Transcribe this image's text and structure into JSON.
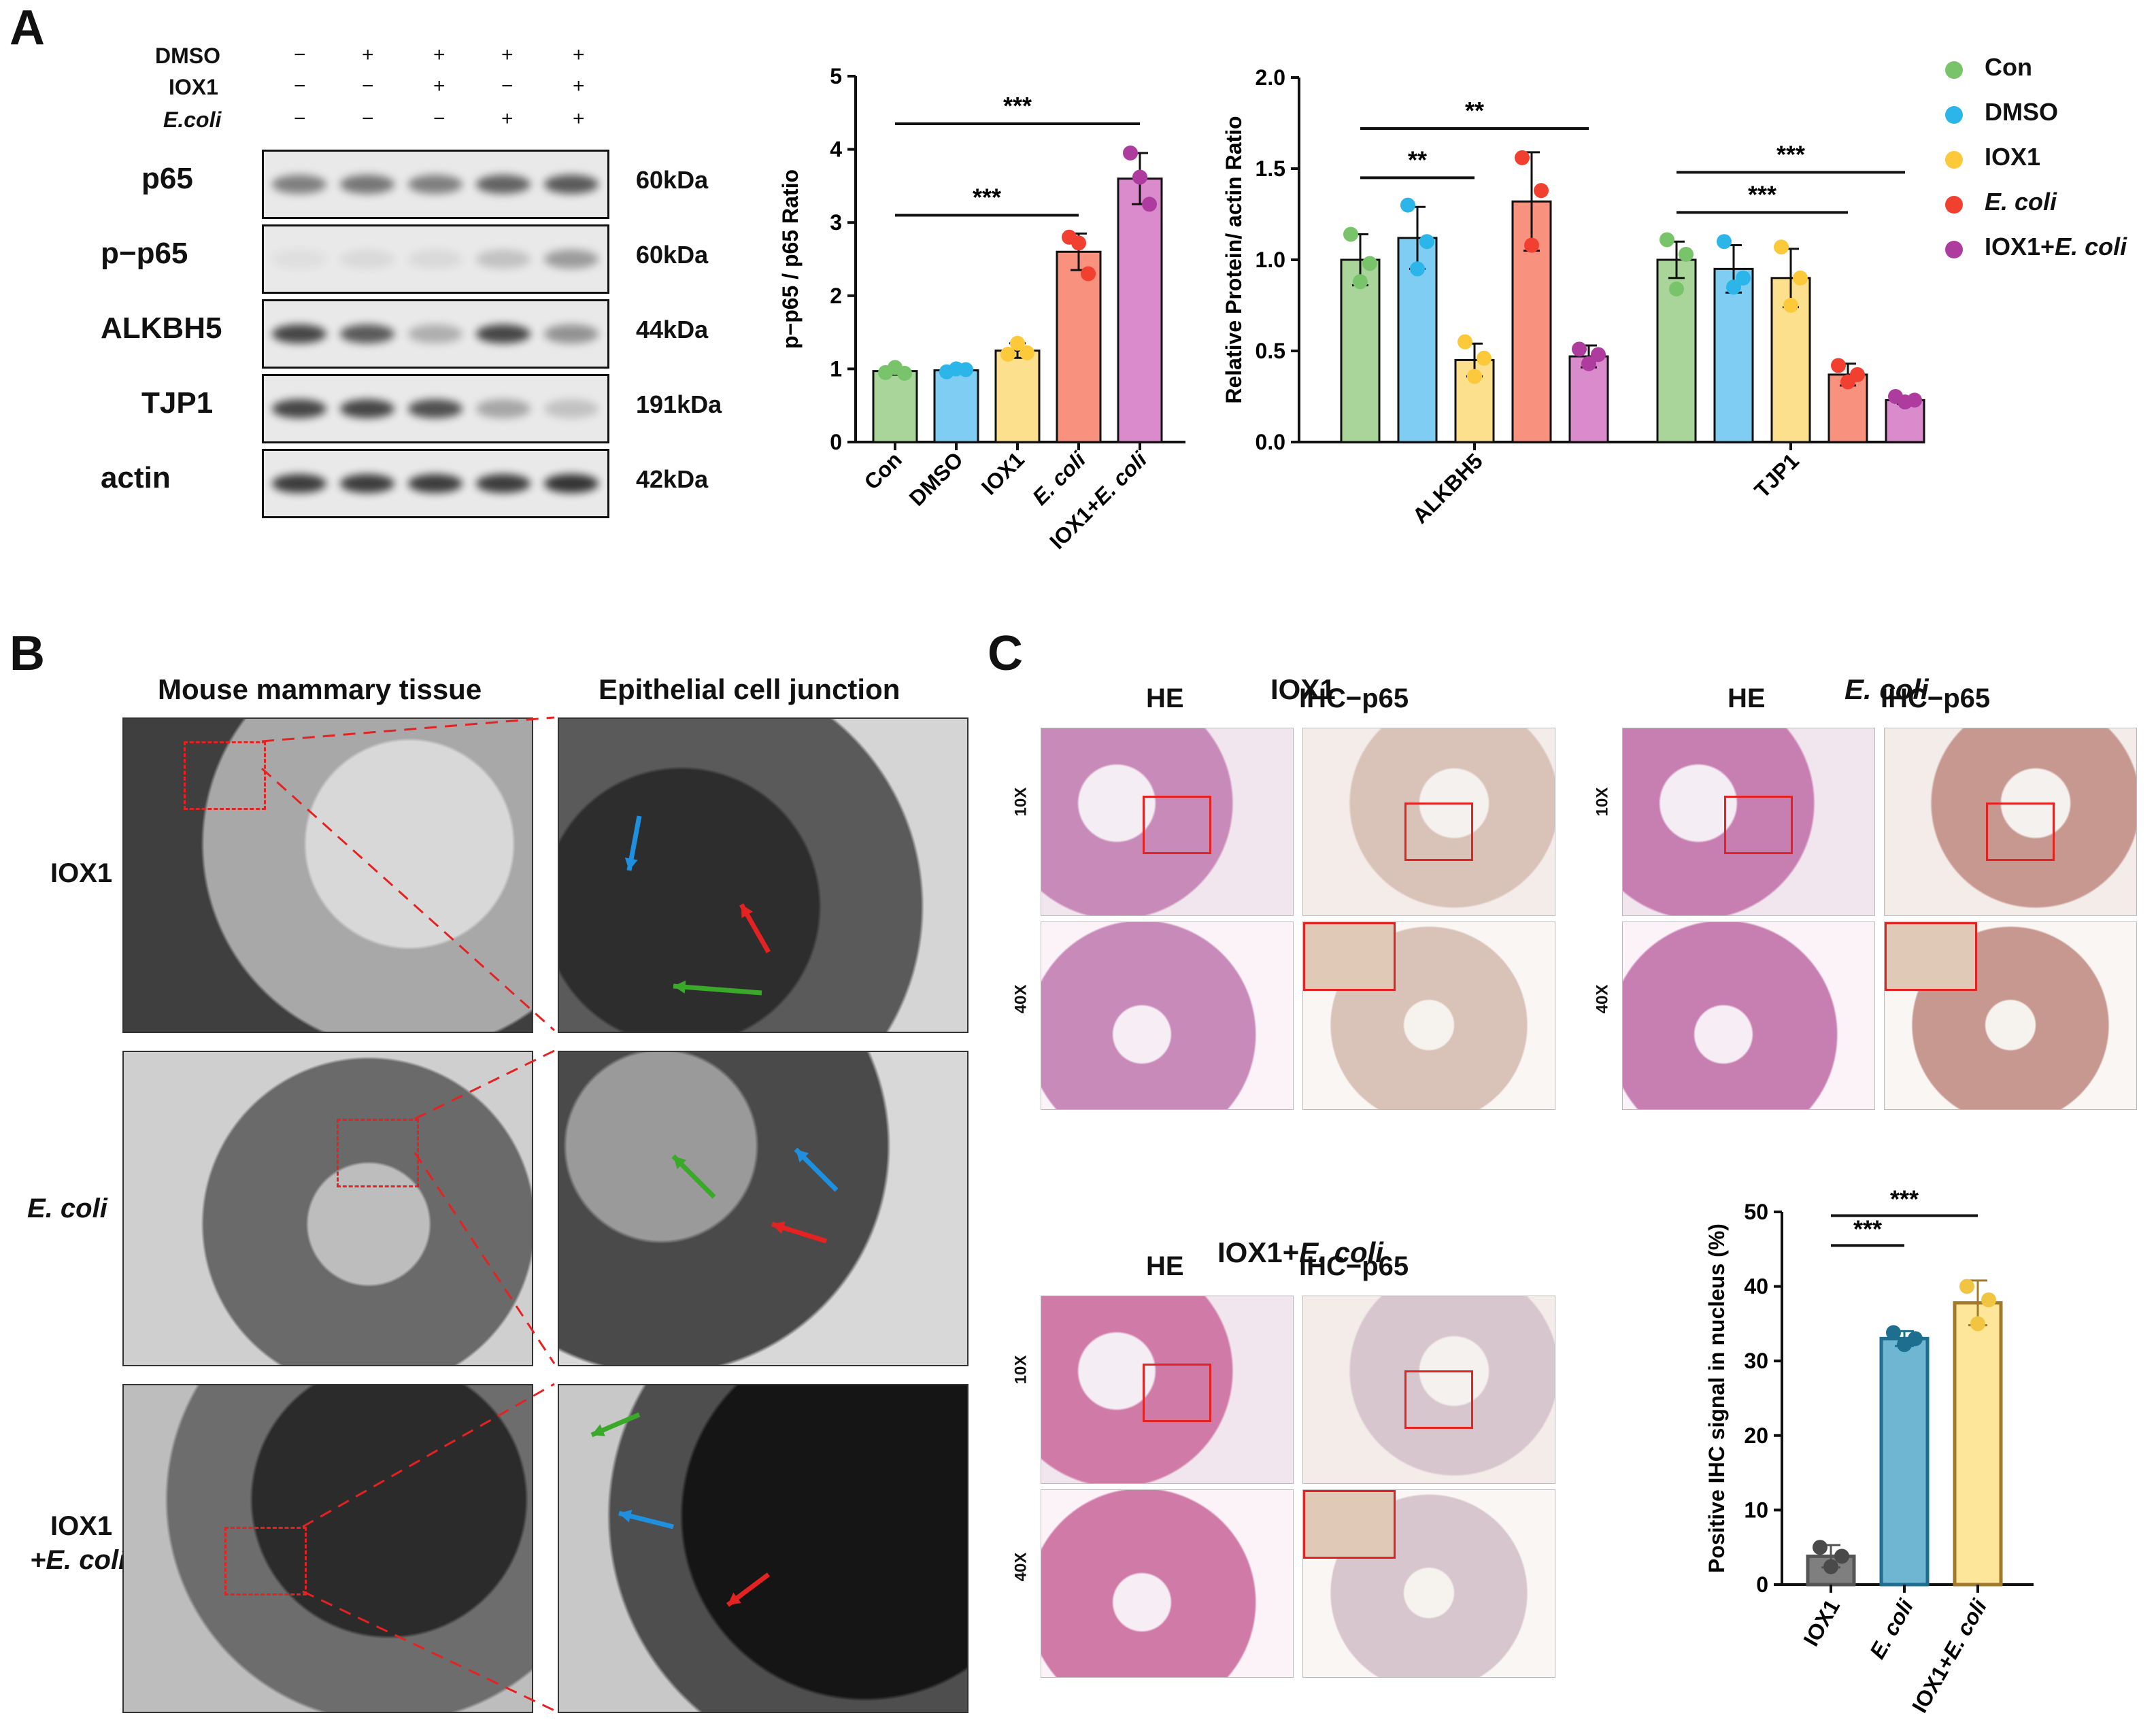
{
  "panels": {
    "A": "A",
    "B": "B",
    "C": "C"
  },
  "western": {
    "treatments": [
      {
        "name": "DMSO",
        "italic": false,
        "signs": [
          "−",
          "+",
          "+",
          "+",
          "+"
        ]
      },
      {
        "name": "IOX1",
        "italic": false,
        "signs": [
          "−",
          "−",
          "+",
          "−",
          "+"
        ]
      },
      {
        "name": "E.coli",
        "italic": true,
        "signs": [
          "−",
          "−",
          "−",
          "+",
          "+"
        ]
      }
    ],
    "rows": [
      {
        "protein": "p65",
        "size": "60kDa",
        "intensity": [
          0.55,
          0.6,
          0.55,
          0.7,
          0.75
        ]
      },
      {
        "protein": "p−p65",
        "size": "60kDa",
        "intensity": [
          0.05,
          0.08,
          0.08,
          0.2,
          0.4
        ]
      },
      {
        "protein": "ALKBH5",
        "size": "44kDa",
        "intensity": [
          0.85,
          0.75,
          0.3,
          0.85,
          0.45
        ]
      },
      {
        "protein": "TJP1",
        "size": "191kDa",
        "intensity": [
          0.85,
          0.85,
          0.8,
          0.35,
          0.2
        ]
      },
      {
        "protein": "actin",
        "size": "42kDa",
        "intensity": [
          0.9,
          0.9,
          0.9,
          0.9,
          0.95
        ]
      }
    ]
  },
  "legend": [
    {
      "label": "Con",
      "italic_part": "",
      "color": "#79c36a"
    },
    {
      "label": "DMSO",
      "italic_part": "",
      "color": "#2bb5e8"
    },
    {
      "label": "IOX1",
      "italic_part": "",
      "color": "#fbc93a"
    },
    {
      "label": "",
      "italic_part": "E. coli",
      "color": "#f1402f"
    },
    {
      "label": "IOX1+",
      "italic_part": "E. coli",
      "color": "#ad3c9e"
    }
  ],
  "chart_data": [
    {
      "type": "bar",
      "ylabel": "p−p65 / p65 Ratio",
      "ylim": [
        0,
        5
      ],
      "yticks": [
        "0",
        "1",
        "2",
        "3",
        "4",
        "5"
      ],
      "categories": [
        "Con",
        "DMSO",
        "IOX1",
        "E. coli",
        "IOX1+E. coli"
      ],
      "values": [
        0.97,
        0.98,
        1.25,
        2.6,
        3.6
      ],
      "errors": [
        0.05,
        0.05,
        0.1,
        0.25,
        0.35
      ],
      "points": [
        [
          0.95,
          1.02,
          0.94
        ],
        [
          0.96,
          1.0,
          0.99
        ],
        [
          1.2,
          1.35,
          1.22
        ],
        [
          2.8,
          2.72,
          2.3
        ],
        [
          3.95,
          3.62,
          3.25
        ]
      ],
      "colors": [
        "#a9d59a",
        "#7fcdf2",
        "#fde08d",
        "#f9917f",
        "#d98bcb"
      ],
      "dot_colors": [
        "#79c36a",
        "#2bb5e8",
        "#fbc93a",
        "#f1402f",
        "#ad3c9e"
      ],
      "sig": [
        {
          "from": 0,
          "to": 4,
          "label": "***",
          "y": 4.35
        },
        {
          "from": 0,
          "to": 3,
          "label": "***",
          "y": 3.1
        }
      ]
    },
    {
      "type": "bar",
      "ylabel": "Relative Protein/ actin Ratio",
      "ylim": [
        0,
        2.0
      ],
      "yticks": [
        "0.0",
        "0.5",
        "1.0",
        "1.5",
        "2.0"
      ],
      "groups": [
        "ALKBH5",
        "TJP1"
      ],
      "series": [
        {
          "name": "Con",
          "values": [
            1.0,
            1.0
          ],
          "errors": [
            0.14,
            0.1
          ],
          "points": [
            [
              1.14,
              0.88,
              0.98
            ],
            [
              1.11,
              0.84,
              1.03
            ]
          ]
        },
        {
          "name": "DMSO",
          "values": [
            1.12,
            0.95
          ],
          "errors": [
            0.17,
            0.13
          ],
          "points": [
            [
              1.3,
              0.95,
              1.1
            ],
            [
              1.1,
              0.85,
              0.9
            ]
          ]
        },
        {
          "name": "IOX1",
          "values": [
            0.45,
            0.9
          ],
          "errors": [
            0.09,
            0.16
          ],
          "points": [
            [
              0.55,
              0.36,
              0.46
            ],
            [
              1.07,
              0.75,
              0.9
            ]
          ]
        },
        {
          "name": "E. coli",
          "values": [
            1.32,
            0.37
          ],
          "errors": [
            0.27,
            0.06
          ],
          "points": [
            [
              1.56,
              1.08,
              1.38
            ],
            [
              0.42,
              0.33,
              0.37
            ]
          ]
        },
        {
          "name": "IOX1+E. coli",
          "values": [
            0.47,
            0.23
          ],
          "errors": [
            0.06,
            0.02
          ],
          "points": [
            [
              0.51,
              0.43,
              0.48
            ],
            [
              0.25,
              0.22,
              0.23
            ]
          ]
        }
      ],
      "sig": [
        {
          "group": 0,
          "from": 0,
          "to": 2,
          "label": "**",
          "y": 1.45
        },
        {
          "group": 0,
          "from": 0,
          "to": 4,
          "label": "**",
          "y": 1.72
        },
        {
          "group": 1,
          "from": 0,
          "to": 3,
          "label": "***",
          "y": 1.26
        },
        {
          "group": 1,
          "from": 0,
          "to": 4,
          "label": "***",
          "y": 1.48
        }
      ]
    },
    {
      "type": "bar",
      "ylabel": "Positive IHC signal in nucleus (%)",
      "ylim": [
        0,
        50
      ],
      "yticks": [
        "0",
        "10",
        "20",
        "30",
        "40",
        "50"
      ],
      "categories": [
        "IOX1",
        "E. coli",
        "IOX1+E. coli"
      ],
      "values": [
        3.8,
        33.0,
        37.8
      ],
      "errors": [
        1.5,
        1.0,
        3.0
      ],
      "points": [
        [
          5.0,
          2.4,
          3.8
        ],
        [
          33.8,
          32.2,
          33.0
        ],
        [
          40.0,
          35.0,
          38.2
        ]
      ],
      "colors": [
        "#7f7f7f",
        "#6fb6d3",
        "#fde59a"
      ],
      "borders": [
        "#555555",
        "#1e6e8f",
        "#a07a2a"
      ],
      "dot_colors": [
        "#4a4a4a",
        "#1e6e8f",
        "#f1c441"
      ],
      "sig": [
        {
          "from": 0,
          "to": 1,
          "label": "***",
          "y": 45.5
        },
        {
          "from": 0,
          "to": 2,
          "label": "***",
          "y": 49.5
        }
      ]
    }
  ],
  "panelB": {
    "col_titles": [
      "Mouse mammary tissue",
      "Epithelial cell junction"
    ],
    "rows": [
      {
        "line1": "IOX1",
        "line2": "",
        "italic": false
      },
      {
        "line1": "E. coli",
        "line2": "",
        "italic": true
      },
      {
        "line1": "IOX1",
        "line2": "+E. coli",
        "italic": false
      }
    ]
  },
  "panelC": {
    "groups": [
      {
        "title": "IOX1",
        "italic": false
      },
      {
        "title": "E. coli",
        "italic": true
      },
      {
        "title_prefix": "IOX1+",
        "title_italic": "E. coli"
      }
    ],
    "col_he": "HE",
    "col_ihc": "IHC−p65",
    "mag_10": "10X",
    "mag_40": "40X"
  }
}
